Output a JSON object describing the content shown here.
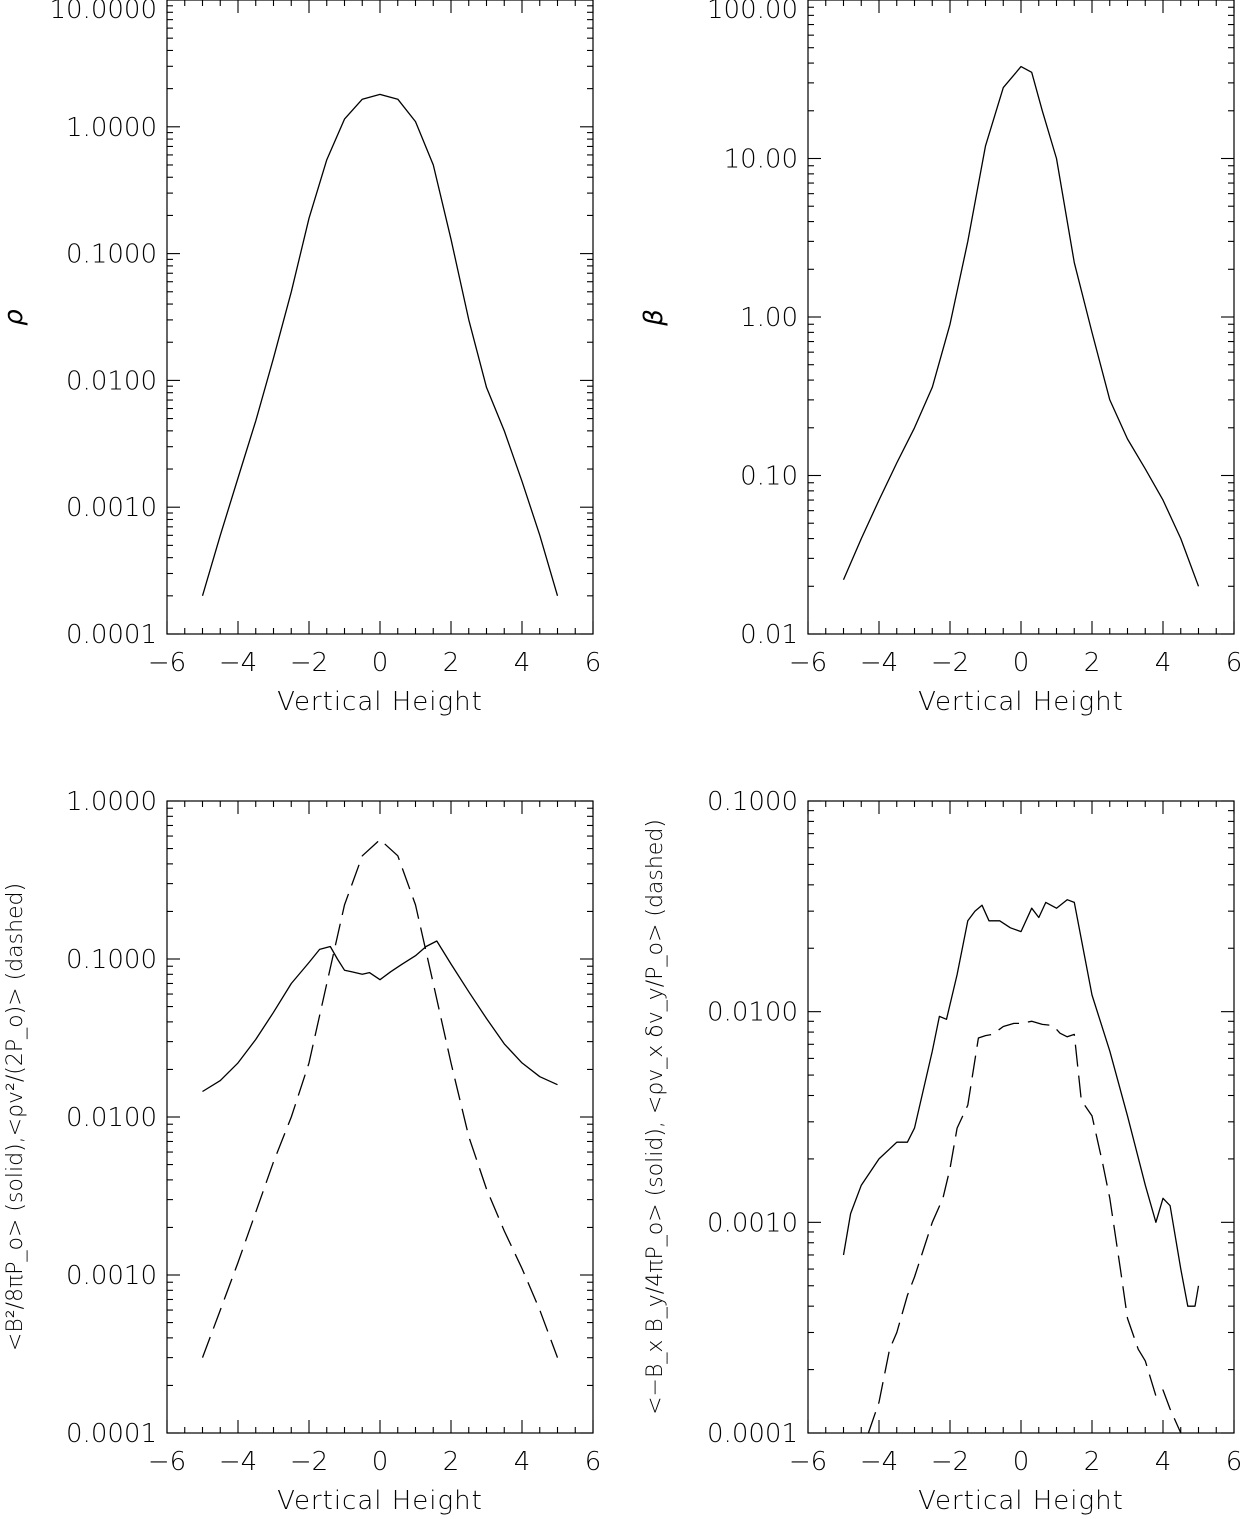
{
  "chart_data": [
    {
      "type": "line",
      "xlabel": "Vertical Height",
      "ylabel": "ρ",
      "yscale": "log",
      "xlim": [
        -6,
        6
      ],
      "ylim": [
        0.0001,
        10
      ],
      "xticks": [
        -6,
        -4,
        -2,
        0,
        2,
        4,
        6
      ],
      "xtick_labels": [
        "−6",
        "−4",
        "−2",
        "0",
        "2",
        "4",
        "6"
      ],
      "yticks": [
        0.0001,
        0.001,
        0.01,
        0.1,
        1,
        10
      ],
      "ytick_labels": [
        "0.0001",
        "0.0010",
        "0.0100",
        "0.1000",
        "1.0000",
        "10.0000"
      ],
      "series": [
        {
          "style": "solid",
          "x": [
            -5,
            -4.5,
            -4,
            -3.5,
            -3,
            -2.5,
            -2,
            -1.5,
            -1,
            -0.5,
            0,
            0.5,
            1,
            1.5,
            2,
            2.5,
            3,
            3.5,
            4,
            4.5,
            5
          ],
          "y": [
            0.0002,
            0.0006,
            0.0017,
            0.0048,
            0.015,
            0.05,
            0.19,
            0.55,
            1.15,
            1.65,
            1.8,
            1.65,
            1.1,
            0.5,
            0.13,
            0.03,
            0.0088,
            0.004,
            0.0016,
            0.0006,
            0.0002
          ]
        }
      ]
    },
    {
      "type": "line",
      "xlabel": "Vertical Height",
      "ylabel": "β",
      "yscale": "log",
      "xlim": [
        -6,
        6
      ],
      "ylim": [
        0.01,
        100
      ],
      "xticks": [
        -6,
        -4,
        -2,
        0,
        2,
        4,
        6
      ],
      "xtick_labels": [
        "−6",
        "−4",
        "−2",
        "0",
        "2",
        "4",
        "6"
      ],
      "yticks": [
        0.01,
        0.1,
        1,
        10,
        100
      ],
      "ytick_labels": [
        "0.01",
        "0.10",
        "1.00",
        "10.00",
        "100.00"
      ],
      "series": [
        {
          "style": "solid",
          "x": [
            -5,
            -4.5,
            -4,
            -3.5,
            -3,
            -2.5,
            -2,
            -1.5,
            -1,
            -0.5,
            0,
            0.3,
            0.6,
            1,
            1.5,
            2,
            2.5,
            3,
            3.5,
            4,
            4.5,
            5
          ],
          "y": [
            0.022,
            0.04,
            0.07,
            0.12,
            0.2,
            0.36,
            0.9,
            3,
            12,
            28,
            38,
            35,
            20,
            10,
            2.2,
            0.8,
            0.3,
            0.17,
            0.11,
            0.07,
            0.04,
            0.02
          ]
        }
      ]
    },
    {
      "type": "line",
      "xlabel": "Vertical Height",
      "ylabel": "<B²/8πP_o> (solid),<ρv²/(2P_o)> (dashed)",
      "yscale": "log",
      "xlim": [
        -6,
        6
      ],
      "ylim": [
        0.0001,
        1
      ],
      "xticks": [
        -6,
        -4,
        -2,
        0,
        2,
        4,
        6
      ],
      "xtick_labels": [
        "−6",
        "−4",
        "−2",
        "0",
        "2",
        "4",
        "6"
      ],
      "yticks": [
        0.0001,
        0.001,
        0.01,
        0.1,
        1
      ],
      "ytick_labels": [
        "0.0001",
        "0.0010",
        "0.0100",
        "0.1000",
        "1.0000"
      ],
      "series": [
        {
          "style": "solid",
          "x": [
            -5,
            -4.5,
            -4,
            -3.5,
            -3,
            -2.5,
            -2,
            -1.7,
            -1.4,
            -1.2,
            -1,
            -0.8,
            -0.5,
            -0.3,
            0,
            0.3,
            0.6,
            1,
            1.3,
            1.6,
            2,
            2.5,
            3,
            3.5,
            4,
            4.5,
            5
          ],
          "y": [
            0.0145,
            0.017,
            0.022,
            0.031,
            0.046,
            0.07,
            0.095,
            0.115,
            0.12,
            0.1,
            0.085,
            0.083,
            0.08,
            0.082,
            0.074,
            0.083,
            0.092,
            0.105,
            0.12,
            0.13,
            0.093,
            0.062,
            0.042,
            0.029,
            0.022,
            0.018,
            0.016
          ]
        },
        {
          "style": "dashed",
          "x": [
            -5,
            -4.5,
            -4,
            -3.5,
            -3,
            -2.5,
            -2,
            -1.5,
            -1,
            -0.5,
            0,
            0.5,
            1,
            1.5,
            2,
            2.5,
            3,
            3.5,
            4,
            4.5,
            5
          ],
          "y": [
            0.0003,
            0.0006,
            0.0012,
            0.0025,
            0.0052,
            0.01,
            0.022,
            0.07,
            0.22,
            0.45,
            0.57,
            0.45,
            0.22,
            0.07,
            0.022,
            0.0075,
            0.0035,
            0.0019,
            0.0011,
            0.0006,
            0.0003
          ]
        }
      ]
    },
    {
      "type": "line",
      "xlabel": "Vertical Height",
      "ylabel": "<−B_x B_y/4πP_o> (solid), <ρv_x δv_y/P_o> (dashed)",
      "yscale": "log",
      "xlim": [
        -6,
        6
      ],
      "ylim": [
        0.0001,
        0.1
      ],
      "xticks": [
        -6,
        -4,
        -2,
        0,
        2,
        4,
        6
      ],
      "xtick_labels": [
        "−6",
        "−4",
        "−2",
        "0",
        "2",
        "4",
        "6"
      ],
      "yticks": [
        0.0001,
        0.001,
        0.01,
        0.1
      ],
      "ytick_labels": [
        "0.0001",
        "0.0010",
        "0.0100",
        "0.1000"
      ],
      "series": [
        {
          "style": "solid",
          "x": [
            -5,
            -4.8,
            -4.5,
            -4,
            -3.5,
            -3.2,
            -3,
            -2.5,
            -2.3,
            -2.1,
            -1.8,
            -1.5,
            -1.3,
            -1.1,
            -0.9,
            -0.6,
            -0.3,
            0,
            0.3,
            0.5,
            0.7,
            1,
            1.3,
            1.5,
            1.8,
            2,
            2.5,
            3,
            3.5,
            3.8,
            4,
            4.2,
            4.5,
            4.7,
            4.9,
            5
          ],
          "y": [
            0.0007,
            0.0011,
            0.0015,
            0.002,
            0.0024,
            0.0024,
            0.0028,
            0.0065,
            0.0095,
            0.0092,
            0.015,
            0.027,
            0.03,
            0.032,
            0.027,
            0.027,
            0.025,
            0.024,
            0.031,
            0.028,
            0.033,
            0.031,
            0.034,
            0.033,
            0.018,
            0.012,
            0.0065,
            0.0032,
            0.0015,
            0.001,
            0.0013,
            0.0012,
            0.0006,
            0.0004,
            0.0004,
            0.0005
          ]
        },
        {
          "style": "dashed",
          "x": [
            -4.3,
            -4,
            -3.7,
            -3.5,
            -3.2,
            -3,
            -2.5,
            -2.2,
            -2,
            -1.8,
            -1.5,
            -1.2,
            -1,
            -0.8,
            -0.5,
            -0.2,
            0,
            0.3,
            0.6,
            0.9,
            1.1,
            1.3,
            1.5,
            1.7,
            2,
            2.3,
            2.5,
            2.8,
            3,
            3.3,
            3.5,
            3.8,
            4,
            4.2,
            4.5
          ],
          "y": [
            0.0001,
            0.00014,
            0.00025,
            0.0003,
            0.00045,
            0.00055,
            0.001,
            0.0013,
            0.0018,
            0.0028,
            0.0036,
            0.0075,
            0.0077,
            0.0078,
            0.0085,
            0.0088,
            0.0088,
            0.009,
            0.0087,
            0.0086,
            0.0079,
            0.0076,
            0.0078,
            0.0038,
            0.0032,
            0.0019,
            0.0013,
            0.0006,
            0.00035,
            0.00025,
            0.00022,
            0.00015,
            0.00016,
            0.00013,
            0.0001
          ]
        }
      ]
    }
  ]
}
